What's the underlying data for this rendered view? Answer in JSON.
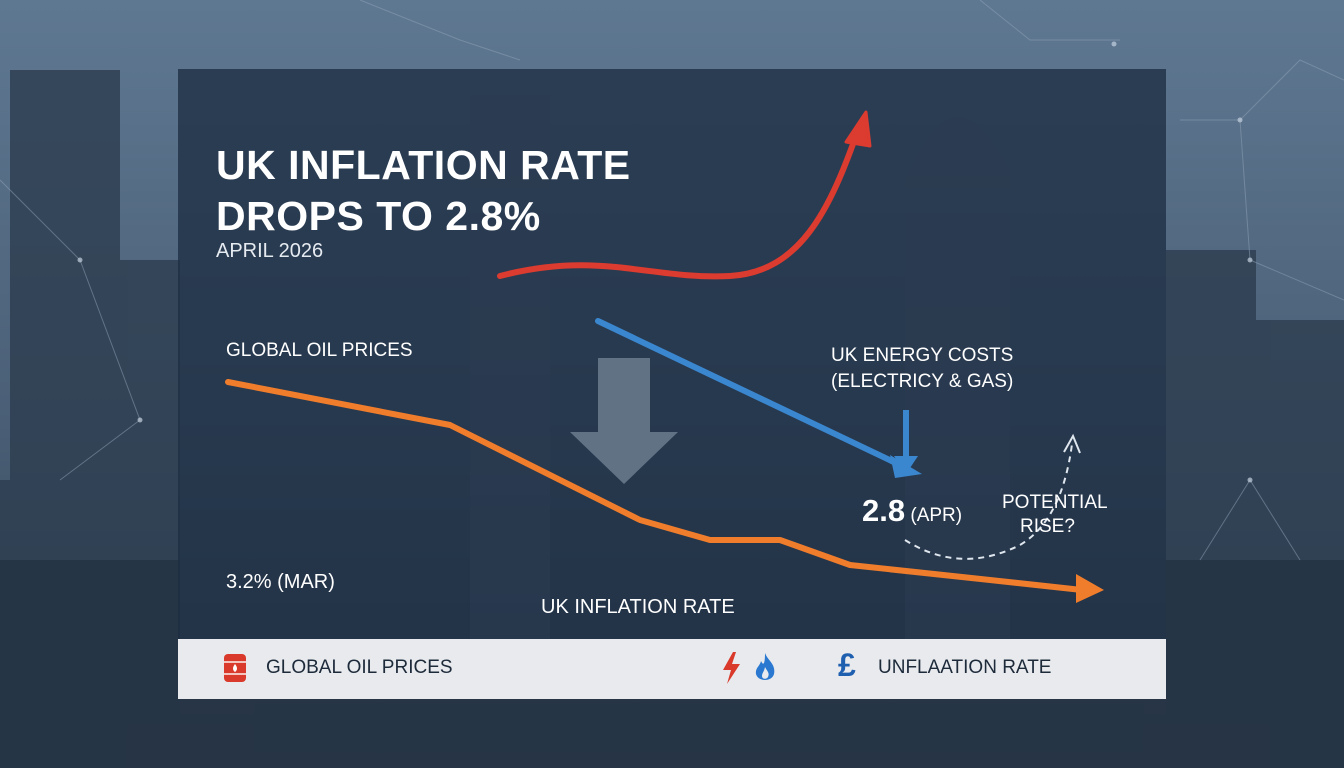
{
  "colors": {
    "oil_line": "#f07d2c",
    "energy_line": "#3b87cf",
    "rise_arrow": "#dc3b2f",
    "panel": "#1e2e42",
    "legend_bg": "#e8eaed",
    "pound_icon": "#1f5fb0"
  },
  "header": {
    "title_line1": "UK INFLATION RATE",
    "title_line2": "DROPS TO 2.8%",
    "date": "APRIL 2026"
  },
  "labels": {
    "oil": "GLOBAL OIL PRICES",
    "energy_line1": "UK ENERGY COSTS",
    "energy_line2": "(ELECTRICY & GAS)",
    "march_value": "3.2% (MAR)",
    "april_value": "2.8",
    "april_suffix": " (APR)",
    "inflation": "UK INFLATION RATE",
    "rise_line1": "POTENTIAL",
    "rise_line2": "RISE?"
  },
  "legend": {
    "oil_label": "GLOBAL OIL PRICES",
    "inflation_label": "UNFLAATION RATE",
    "icons": [
      "oil-barrel-icon",
      "lightning-bolt-icon",
      "flame-icon",
      "pound-sign-icon"
    ]
  }
}
